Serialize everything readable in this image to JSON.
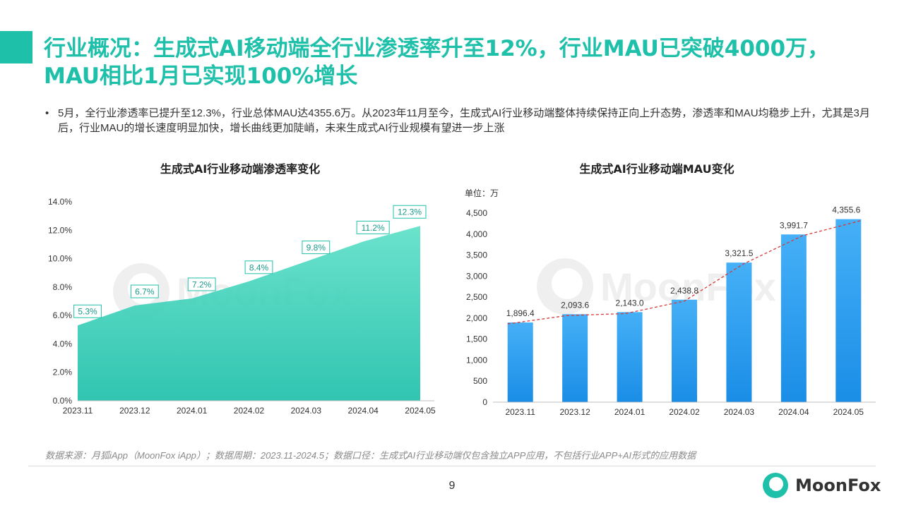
{
  "header": {
    "title": "行业概况：生成式AI移动端全行业渗透率升至12%，行业MAU已突破4000万，MAU相比1月已实现100%增长"
  },
  "summary": {
    "bullet_symbol": "•",
    "text": "5月，全行业渗透率已提升至12.3%，行业总体MAU达4355.6万。从2023年11月至今，生成式AI行业移动端整体持续保持正向上升态势，渗透率和MAU均稳步上升，尤其是3月后，行业MAU的增长速度明显加快，增长曲线更加陡峭，未来生成式AI行业规模有望进一步上涨"
  },
  "watermark": {
    "text": "MoonFox"
  },
  "chart_data": [
    {
      "type": "area",
      "title": "生成式AI行业移动端渗透率变化",
      "categories": [
        "2023.11",
        "2023.12",
        "2024.01",
        "2024.02",
        "2024.03",
        "2024.04",
        "2024.05"
      ],
      "values": [
        5.3,
        6.7,
        7.2,
        8.4,
        9.8,
        11.2,
        12.3
      ],
      "data_labels": [
        "5.3%",
        "6.7%",
        "7.2%",
        "8.4%",
        "9.8%",
        "11.2%",
        "12.3%"
      ],
      "y_ticks": [
        "0.0%",
        "2.0%",
        "4.0%",
        "6.0%",
        "8.0%",
        "10.0%",
        "12.0%",
        "14.0%"
      ],
      "ylim": [
        0,
        14
      ],
      "color": "#1fc0aa",
      "grid": false,
      "legend": "none"
    },
    {
      "type": "bar",
      "title": "生成式AI行业移动端MAU变化",
      "unit_label": "单位：万",
      "categories": [
        "2023.11",
        "2023.12",
        "2024.01",
        "2024.02",
        "2024.03",
        "2024.04",
        "2024.05"
      ],
      "values": [
        1896.4,
        2093.6,
        2143.0,
        2438.8,
        3321.5,
        3991.7,
        4355.6
      ],
      "data_labels": [
        "1,896.4",
        "2,093.6",
        "2,143.0",
        "2,438.8",
        "3,321.5",
        "3,991.7",
        "4,355.6"
      ],
      "y_ticks": [
        "0",
        "500",
        "1,000",
        "1,500",
        "2,000",
        "2,500",
        "3,000",
        "3,500",
        "4,000",
        "4,500"
      ],
      "ylim": [
        0,
        4500
      ],
      "color": "#2e9cf0",
      "trendline": {
        "style": "dashed",
        "color": "#d63a3a"
      },
      "grid": false,
      "legend": "none"
    }
  ],
  "footer": {
    "source": "数据来源：月狐iApp（MoonFox iApp）；数据周期：2023.11-2024.5；数据口径：生成式AI行业移动端仅包含独立APP应用，不包括行业APP+AI形式的应用数据",
    "page_number": "9",
    "logo_text": "MoonFox",
    "logo_color": "#1fc0aa"
  }
}
